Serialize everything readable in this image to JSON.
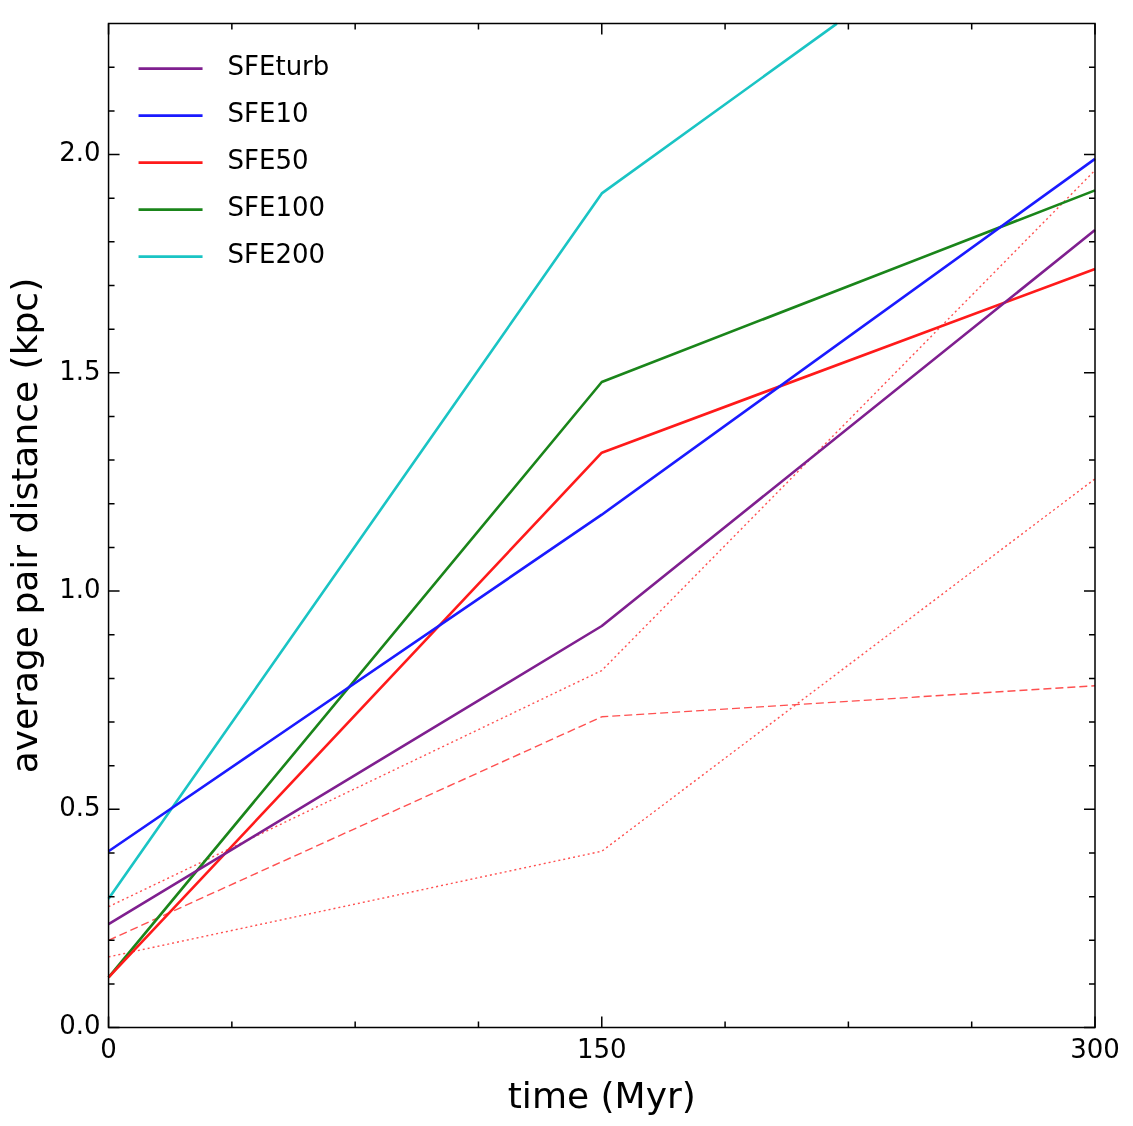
{
  "chart_data": {
    "type": "line",
    "xlabel": "time (Myr)",
    "ylabel": "average pair distance (kpc)",
    "xlim": [
      0,
      300
    ],
    "ylim": [
      0,
      2.3
    ],
    "xticks": [
      0,
      {
        "value": 37.5,
        "label": null
      },
      {
        "value": 75,
        "label": null
      },
      {
        "value": 112.5,
        "label": null
      },
      150,
      {
        "value": 187.5,
        "label": null
      },
      {
        "value": 225,
        "label": null
      },
      {
        "value": 262.5,
        "label": null
      },
      300
    ],
    "yticks": [
      {
        "value": 0,
        "label": "0.0"
      },
      {
        "value": 0.1,
        "label": null
      },
      {
        "value": 0.2,
        "label": null
      },
      {
        "value": 0.3,
        "label": null
      },
      {
        "value": 0.4,
        "label": null
      },
      {
        "value": 0.5,
        "label": "0.5"
      },
      {
        "value": 0.6,
        "label": null
      },
      {
        "value": 0.7,
        "label": null
      },
      {
        "value": 0.8,
        "label": null
      },
      {
        "value": 0.9,
        "label": null
      },
      {
        "value": 1.0,
        "label": "1.0"
      },
      {
        "value": 1.1,
        "label": null
      },
      {
        "value": 1.2,
        "label": null
      },
      {
        "value": 1.3,
        "label": null
      },
      {
        "value": 1.4,
        "label": null
      },
      {
        "value": 1.5,
        "label": "1.5"
      },
      {
        "value": 1.6,
        "label": null
      },
      {
        "value": 1.7,
        "label": null
      },
      {
        "value": 1.8,
        "label": null
      },
      {
        "value": 1.9,
        "label": null
      },
      {
        "value": 2.0,
        "label": "2.0"
      },
      {
        "value": 2.1,
        "label": null
      },
      {
        "value": 2.2,
        "label": null
      }
    ],
    "x": [
      0,
      150,
      300
    ],
    "grid": false,
    "legend": "top left",
    "marker": "none",
    "series": [
      {
        "name": "SFEturb",
        "color": "#7f1f8f",
        "values": [
          0.237,
          0.92,
          1.827
        ]
      },
      {
        "name": "SFE10",
        "color": "#1a1aff",
        "values": [
          0.404,
          1.175,
          1.99
        ]
      },
      {
        "name": "SFE50",
        "color": "#ff1a1a",
        "values": [
          0.115,
          1.317,
          1.738
        ]
      },
      {
        "name": "SFE100",
        "color": "#1a851a",
        "values": [
          0.115,
          1.479,
          1.918
        ]
      },
      {
        "name": "SFE200",
        "color": "#1ac4c4",
        "x": [
          0,
          150,
          221.5
        ],
        "values": [
          0.295,
          1.911,
          2.3
        ]
      },
      {
        "color": "#ff5050",
        "line_style": "dotted",
        "values": [
          0.277,
          0.818,
          1.964
        ]
      },
      {
        "color": "#ff5050",
        "line_style": "dotted",
        "values": [
          0.162,
          0.404,
          1.257
        ]
      },
      {
        "color": "#ff5050",
        "line_style": "dashed",
        "values": [
          0.2,
          0.712,
          0.783
        ]
      }
    ]
  }
}
